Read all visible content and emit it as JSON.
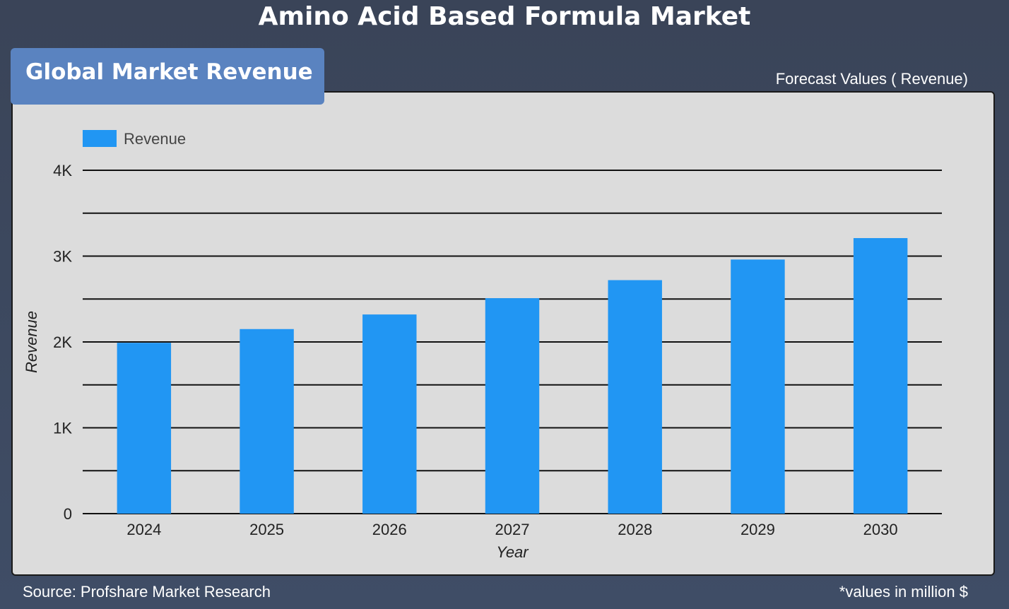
{
  "header": {
    "title": "Amino Acid Based Formula Market"
  },
  "tab": {
    "label": "Global Market Revenue"
  },
  "forecast_label": "Forecast Values ( Revenue)",
  "footer": {
    "source": "Source: Profshare Market Research",
    "units": "*values in million $"
  },
  "chart_data": {
    "type": "bar",
    "categories": [
      "2024",
      "2025",
      "2026",
      "2027",
      "2028",
      "2029",
      "2030"
    ],
    "series": [
      {
        "name": "Revenue",
        "values": [
          1990,
          2150,
          2320,
          2510,
          2720,
          2960,
          3210
        ],
        "color": "#2196f3"
      }
    ],
    "xlabel": "Year",
    "ylabel": "Revenue",
    "ylim": [
      0,
      4000
    ],
    "yticks": [
      0,
      1000,
      2000,
      3000,
      4000
    ],
    "ytick_labels": [
      "0",
      "1K",
      "2K",
      "3K",
      "4K"
    ],
    "legend": "top-left",
    "grid": true
  }
}
